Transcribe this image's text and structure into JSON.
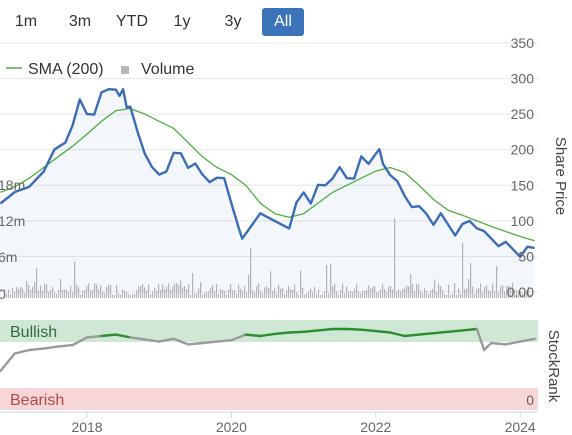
{
  "range_tabs": [
    {
      "label": "1m",
      "active": false
    },
    {
      "label": "3m",
      "active": false
    },
    {
      "label": "YTD",
      "active": false
    },
    {
      "label": "1y",
      "active": false
    },
    {
      "label": "3y",
      "active": false
    },
    {
      "label": "All",
      "active": true
    }
  ],
  "colors": {
    "price_line": "#3b6cb7",
    "sma_line": "#4caf3f",
    "volume_bar": "#b8b8b8",
    "bullish_band": "#cfe8d6",
    "bearish_band": "#f6d6d6",
    "stockrank_bull": "#2e8b2e",
    "stockrank_neutral": "#9a9a9a",
    "accent": "#3b73b9"
  },
  "chart_data": [
    {
      "type": "line",
      "legend": [
        {
          "name": "SMA (200)",
          "icon": "line"
        },
        {
          "name": "Volume",
          "icon": "square"
        }
      ],
      "ylabel": "Share Price",
      "ylim": [
        0,
        350
      ],
      "yticks": [
        "350",
        "300",
        "250",
        "200",
        "150",
        "100",
        "50",
        "0.00"
      ],
      "volume_ticks": [
        "18m",
        "12m",
        "6m",
        "0"
      ],
      "xticks": [
        "2018",
        "2020",
        "2022",
        "2024"
      ],
      "grid": true,
      "series": [
        {
          "name": "Price",
          "x": [
            2016.8,
            2017.0,
            2017.2,
            2017.4,
            2017.55,
            2017.7,
            2017.8,
            2017.9,
            2018.0,
            2018.1,
            2018.2,
            2018.3,
            2018.4,
            2018.45,
            2018.5,
            2018.55,
            2018.6,
            2018.7,
            2018.8,
            2018.9,
            2019.0,
            2019.1,
            2019.2,
            2019.3,
            2019.4,
            2019.5,
            2019.6,
            2019.7,
            2019.8,
            2019.9,
            2020.0,
            2020.1,
            2020.15,
            2020.25,
            2020.4,
            2020.6,
            2020.8,
            2020.9,
            2021.0,
            2021.1,
            2021.2,
            2021.3,
            2021.4,
            2021.5,
            2021.6,
            2021.7,
            2021.8,
            2021.9,
            2022.0,
            2022.05,
            2022.1,
            2022.2,
            2022.3,
            2022.4,
            2022.5,
            2022.6,
            2022.7,
            2022.8,
            2022.9,
            2023.0,
            2023.1,
            2023.2,
            2023.3,
            2023.4,
            2023.5,
            2023.6,
            2023.7,
            2023.8,
            2023.9,
            2024.0,
            2024.1,
            2024.2
          ],
          "y": [
            130,
            135,
            148,
            175,
            195,
            210,
            240,
            265,
            250,
            255,
            275,
            285,
            290,
            270,
            285,
            265,
            255,
            225,
            200,
            170,
            165,
            175,
            190,
            195,
            180,
            175,
            165,
            160,
            155,
            160,
            130,
            85,
            75,
            95,
            105,
            100,
            95,
            120,
            140,
            130,
            145,
            150,
            165,
            170,
            160,
            165,
            185,
            180,
            200,
            195,
            180,
            170,
            150,
            135,
            125,
            115,
            110,
            100,
            105,
            95,
            85,
            90,
            100,
            95,
            80,
            75,
            70,
            65,
            60,
            55,
            58,
            62
          ]
        },
        {
          "name": "SMA (200)",
          "x": [
            2016.8,
            2017.0,
            2017.2,
            2017.4,
            2017.6,
            2017.8,
            2018.0,
            2018.2,
            2018.4,
            2018.6,
            2018.8,
            2019.0,
            2019.2,
            2019.4,
            2019.6,
            2019.8,
            2020.0,
            2020.2,
            2020.4,
            2020.6,
            2020.8,
            2021.0,
            2021.2,
            2021.4,
            2021.6,
            2021.8,
            2022.0,
            2022.2,
            2022.4,
            2022.6,
            2022.8,
            2023.0,
            2023.2,
            2023.4,
            2023.6,
            2023.8,
            2024.0,
            2024.2
          ],
          "y": [
            140,
            148,
            160,
            175,
            190,
            205,
            222,
            240,
            255,
            258,
            250,
            240,
            230,
            210,
            190,
            175,
            165,
            150,
            125,
            110,
            105,
            110,
            125,
            140,
            150,
            160,
            170,
            175,
            168,
            150,
            130,
            115,
            108,
            100,
            92,
            85,
            78,
            72
          ]
        }
      ]
    },
    {
      "type": "area",
      "ylabel": "StockRank",
      "bands": [
        {
          "label": "Bullish",
          "tick": ""
        },
        {
          "label": "Bearish",
          "tick": "0"
        }
      ],
      "ylim": [
        0,
        100
      ],
      "x": [
        2016.8,
        2017.0,
        2017.2,
        2017.4,
        2017.6,
        2017.8,
        2018.0,
        2018.2,
        2018.4,
        2018.6,
        2018.8,
        2019.0,
        2019.2,
        2019.4,
        2019.6,
        2019.8,
        2020.0,
        2020.2,
        2020.4,
        2020.6,
        2020.8,
        2021.0,
        2021.2,
        2021.4,
        2021.6,
        2021.8,
        2022.0,
        2022.2,
        2022.4,
        2022.6,
        2022.8,
        2023.0,
        2023.2,
        2023.4,
        2023.5,
        2023.6,
        2023.8,
        2024.0,
        2024.2
      ],
      "y": [
        30,
        55,
        60,
        62,
        65,
        67,
        78,
        80,
        82,
        78,
        75,
        72,
        76,
        68,
        70,
        72,
        74,
        82,
        80,
        83,
        85,
        86,
        88,
        90,
        90,
        89,
        87,
        85,
        80,
        82,
        84,
        86,
        88,
        90,
        60,
        70,
        68,
        72,
        76
      ]
    }
  ]
}
